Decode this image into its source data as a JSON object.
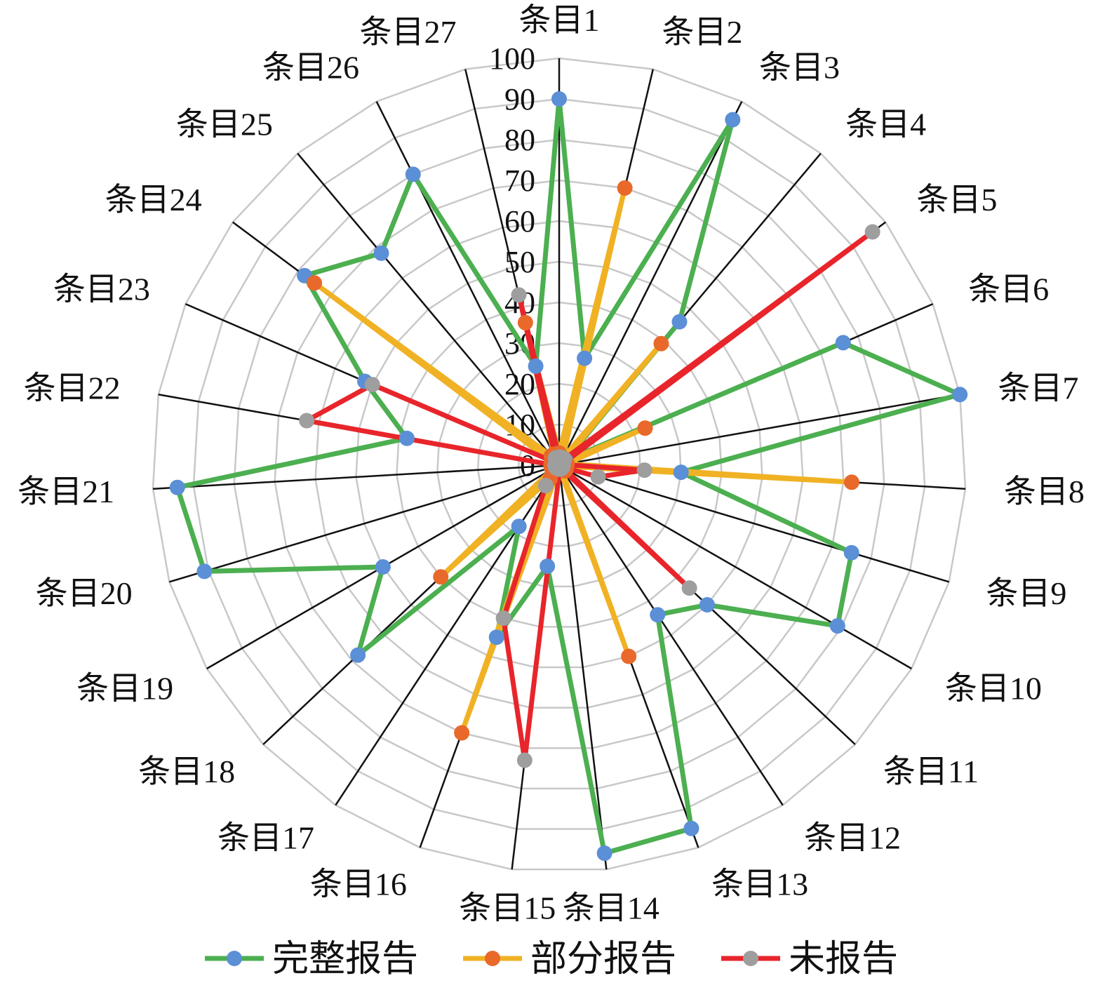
{
  "chart_data": {
    "type": "radar",
    "rlim": [
      0,
      100
    ],
    "rticks": [
      0,
      10,
      20,
      30,
      40,
      50,
      60,
      70,
      80,
      90,
      100
    ],
    "grid": true,
    "legend_position": "bottom",
    "categories": [
      "条目1",
      "条目2",
      "条目3",
      "条目4",
      "条目5",
      "条目6",
      "条目7",
      "条目8",
      "条目9",
      "条目10",
      "条目11",
      "条目12",
      "条目13",
      "条目14",
      "条目15",
      "条目16",
      "条目17",
      "条目18",
      "条目19",
      "条目20",
      "条目21",
      "条目22",
      "条目23",
      "条目24",
      "条目25",
      "条目26",
      "条目27"
    ],
    "series": [
      {
        "name": "完整报告",
        "line_color": "#4caf50",
        "marker_color": "#5b8fd6",
        "values": [
          90,
          27,
          95,
          46,
          2,
          76,
          100,
          30,
          75,
          79,
          50,
          44,
          95,
          96,
          25,
          45,
          18,
          68,
          50,
          91,
          94,
          38,
          52,
          78,
          68,
          80,
          25
        ]
      },
      {
        "name": "部分报告",
        "line_color": "#f0b224",
        "marker_color": "#e8692a",
        "values": [
          3,
          70,
          2,
          39,
          1,
          23,
          2,
          72,
          1,
          2,
          2,
          1,
          50,
          1,
          1,
          70,
          4,
          40,
          2,
          2,
          2,
          2,
          2,
          75,
          3,
          3,
          36
        ]
      },
      {
        "name": "未报告",
        "line_color": "#e8252b",
        "marker_color": "#9e9e9e",
        "values": [
          2,
          2,
          1,
          2,
          96,
          1,
          1,
          21,
          10,
          1,
          44,
          1,
          1,
          1,
          73,
          40,
          6,
          1,
          1,
          1,
          1,
          63,
          50,
          1,
          1,
          2,
          43
        ]
      }
    ]
  }
}
